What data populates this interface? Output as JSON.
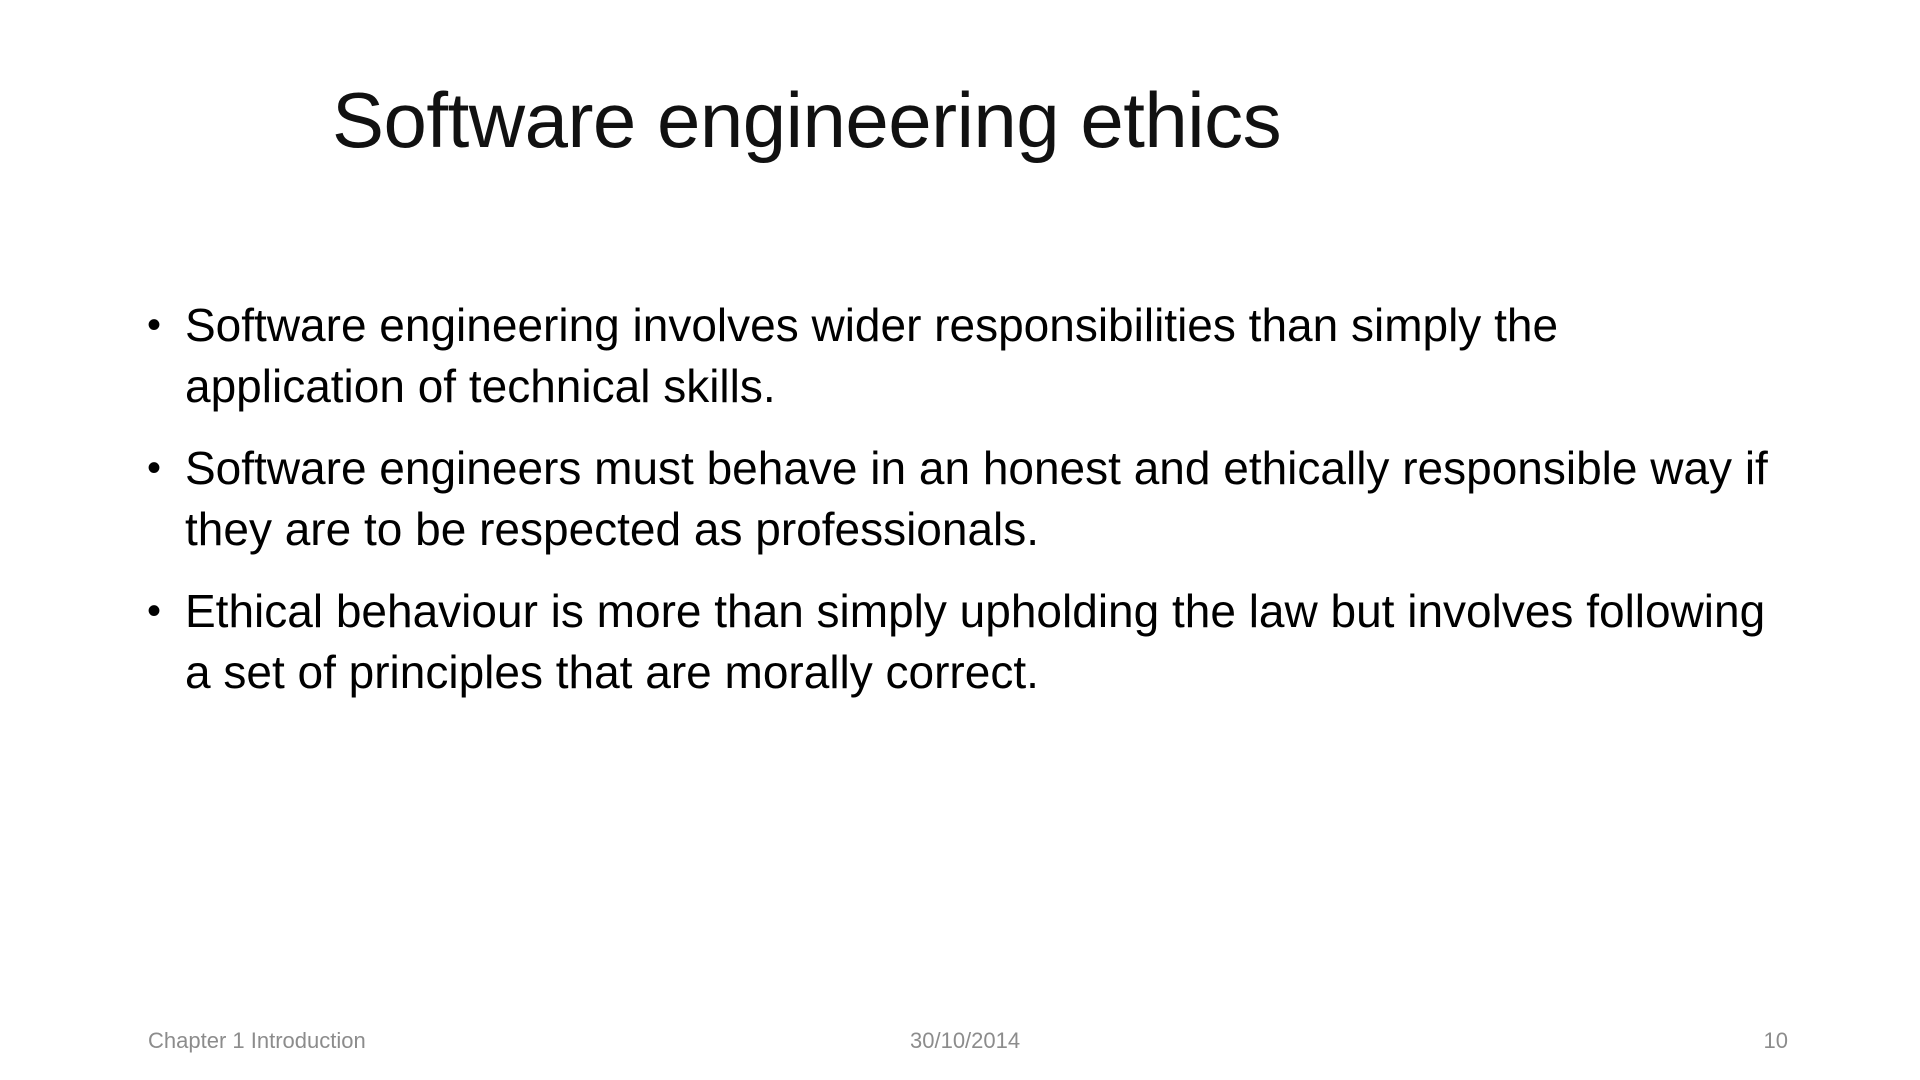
{
  "slide": {
    "title": "Software engineering ethics",
    "bullets": [
      {
        "text": "Software engineering involves wider responsibilities than simply the application of technical skills."
      },
      {
        "text": "Software engineers must behave in an honest and ethically responsible way if they are to be respected as professionals."
      },
      {
        "text": "Ethical behaviour is more than simply upholding the law but involves following a set of principles that are morally correct."
      }
    ],
    "bullet_symbol": "•"
  },
  "footer": {
    "left": "Chapter 1 Introduction",
    "center": "30/10/2014",
    "right": "10"
  }
}
